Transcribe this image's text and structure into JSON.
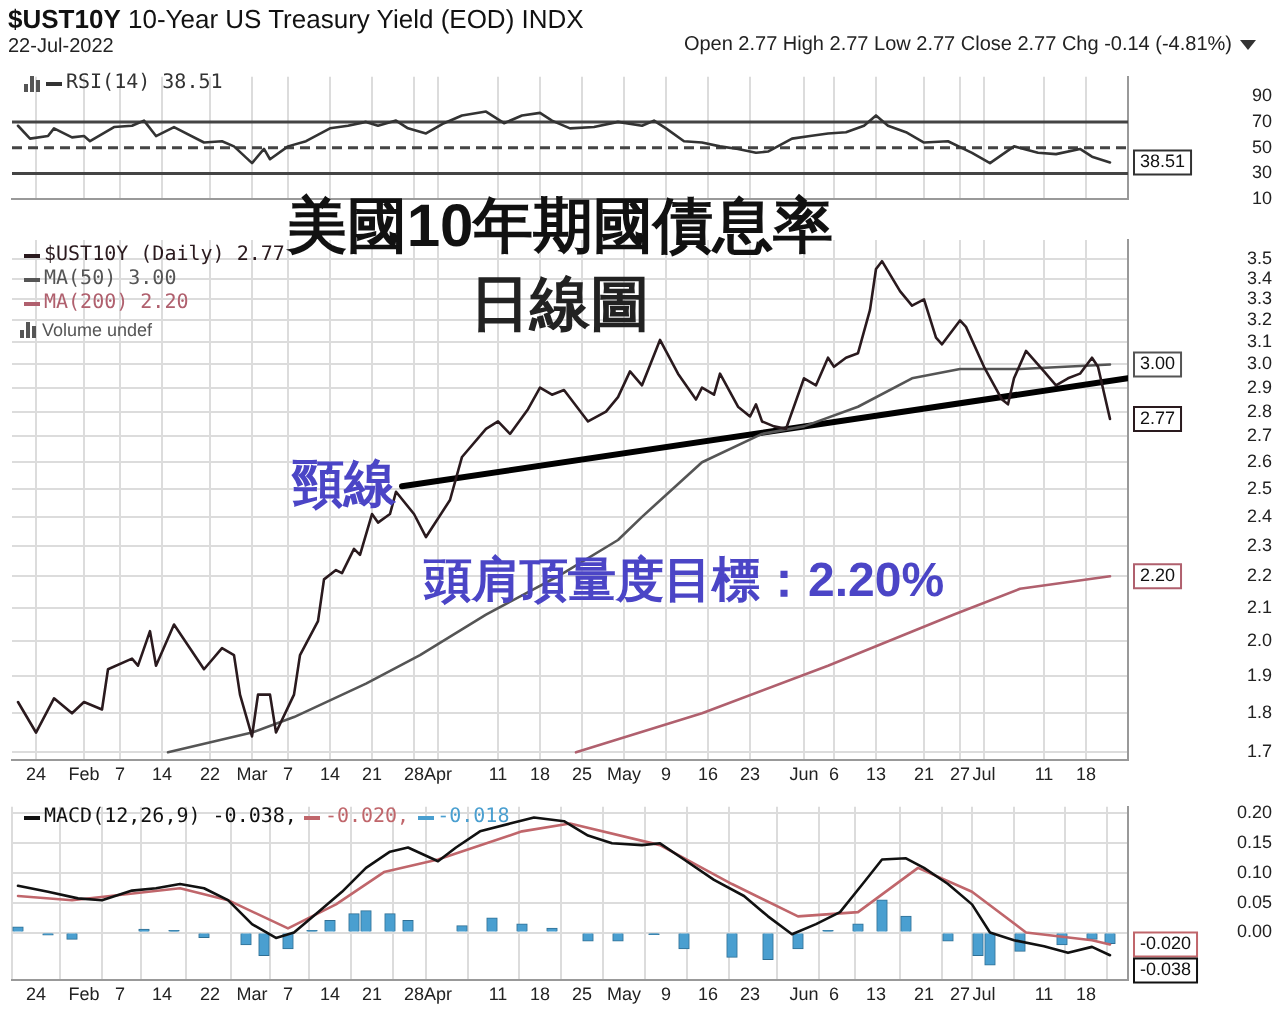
{
  "chart_data": [
    {
      "type": "line",
      "title": "$UST10Y 10-Year US Treasury Yield (EOD) INDX",
      "subtitle": "22-Jul-2022",
      "annotations": [
        "Open 2.77 High 2.77 Low 2.77 Close 2.77 Chg -0.14 (-4.81%)"
      ],
      "grid": "x",
      "legend": "top left",
      "tick_labels": "y",
      "xlim": [
        "--01-20",
        "--07-25"
      ],
      "xticks": [
        {
          "value": "--01-24",
          "label": "24"
        },
        {
          "value": "--02-01",
          "label": "Feb"
        },
        {
          "value": "--02-07",
          "label": "7"
        },
        {
          "value": "--02-14",
          "label": "14"
        },
        {
          "value": "--02-22",
          "label": "22"
        },
        {
          "value": "--03-01",
          "label": "Mar"
        },
        {
          "value": "--03-07",
          "label": "7"
        },
        {
          "value": "--03-14",
          "label": "14"
        },
        {
          "value": "--03-21",
          "label": "21"
        },
        {
          "value": "--03-28",
          "label": "28"
        },
        {
          "value": "--04-01",
          "label": "Apr"
        },
        {
          "value": "--04-11",
          "label": "11"
        },
        {
          "value": "--04-18",
          "label": "18"
        },
        {
          "value": "--04-25",
          "label": "25"
        },
        {
          "value": "--05-02",
          "label": "May"
        },
        {
          "value": "--05-09",
          "label": "9"
        },
        {
          "value": "--05-16",
          "label": "16"
        },
        {
          "value": "--05-23",
          "label": "23"
        },
        {
          "value": "--06-01",
          "label": "Jun"
        },
        {
          "value": "--06-06",
          "label": "6"
        },
        {
          "value": "--06-13",
          "label": "13"
        },
        {
          "value": "--06-21",
          "label": "21"
        },
        {
          "value": "--06-27",
          "label": "27"
        },
        {
          "value": "--07-01",
          "label": "Jul"
        },
        {
          "value": "--07-11",
          "label": "11"
        },
        {
          "value": "--07-18",
          "label": "18"
        }
      ],
      "ylim": [
        10,
        105
      ],
      "yticks": [
        10,
        30,
        50,
        70,
        90
      ],
      "ref_lines": [
        {
          "axis": "y",
          "value": 70,
          "color": "#444444"
        },
        {
          "axis": "y",
          "value": 50,
          "line_style": "dashed",
          "color": "#444444"
        },
        {
          "axis": "y",
          "value": 30,
          "color": "#444444"
        }
      ],
      "series": [
        {
          "name": "RSI(14) 38.51",
          "color": "#333333",
          "x": [
            "--01-21",
            "--01-23",
            "--01-26",
            "--01-27",
            "--01-30",
            "--02-01",
            "--02-02",
            "--02-06",
            "--02-09",
            "--02-11",
            "--02-13",
            "--02-16",
            "--02-21",
            "--02-24",
            "--02-26",
            "--03-01",
            "--03-03",
            "--03-04",
            "--03-07",
            "--03-10",
            "--03-14",
            "--03-17",
            "--03-20",
            "--03-22",
            "--03-25",
            "--03-27",
            "--03-30",
            "--04-02",
            "--04-05",
            "--04-09",
            "--04-12",
            "--04-15",
            "--04-18",
            "--04-20",
            "--04-23",
            "--04-27",
            "--05-01",
            "--05-05",
            "--05-07",
            "--05-09",
            "--05-12",
            "--05-15",
            "--05-18",
            "--05-21",
            "--05-24",
            "--05-26",
            "--05-30",
            "--06-02",
            "--06-05",
            "--06-08",
            "--06-11",
            "--06-13",
            "--06-15",
            "--06-18",
            "--06-21",
            "--06-25",
            "--06-29",
            "--07-02",
            "--07-06",
            "--07-10",
            "--07-13",
            "--07-17",
            "--07-19",
            "--07-22"
          ],
          "values": [
            67,
            57,
            59,
            65,
            58,
            59,
            55,
            66,
            67,
            71,
            59,
            66,
            54,
            55,
            51,
            38,
            49,
            41,
            51,
            55,
            65,
            67,
            70,
            67,
            71,
            65,
            61,
            69,
            75,
            78,
            69,
            75,
            77,
            71,
            65,
            66,
            70,
            67,
            71,
            65,
            55,
            54,
            51,
            49,
            46,
            47,
            57,
            59,
            61,
            62,
            67,
            75,
            67,
            62,
            54,
            55,
            46,
            38,
            51,
            46,
            45,
            49,
            43,
            38.51
          ],
          "value_labels": [
            null,
            null,
            null,
            null,
            null,
            null,
            null,
            null,
            null,
            null,
            null,
            null,
            null,
            null,
            null,
            null,
            null,
            null,
            null,
            null,
            null,
            null,
            null,
            null,
            null,
            null,
            null,
            null,
            null,
            null,
            null,
            null,
            null,
            null,
            null,
            null,
            null,
            null,
            null,
            null,
            null,
            null,
            null,
            null,
            null,
            null,
            null,
            null,
            null,
            null,
            null,
            null,
            null,
            null,
            null,
            null,
            null,
            null,
            null,
            null,
            null,
            null,
            null,
            "38.51"
          ]
        }
      ]
    },
    {
      "type": "line",
      "title": "美國10年期國債息率",
      "subtitle": "日線圖",
      "log": "y",
      "grid": true,
      "legend": "top left",
      "xlim": [
        "--01-20",
        "--07-25"
      ],
      "xticks": [
        {
          "value": "--01-24",
          "label": "24"
        },
        {
          "value": "--02-01",
          "label": "Feb"
        },
        {
          "value": "--02-07",
          "label": "7"
        },
        {
          "value": "--02-14",
          "label": "14"
        },
        {
          "value": "--02-22",
          "label": "22"
        },
        {
          "value": "--03-01",
          "label": "Mar"
        },
        {
          "value": "--03-07",
          "label": "7"
        },
        {
          "value": "--03-14",
          "label": "14"
        },
        {
          "value": "--03-21",
          "label": "21"
        },
        {
          "value": "--03-28",
          "label": "28"
        },
        {
          "value": "--04-01",
          "label": "Apr"
        },
        {
          "value": "--04-11",
          "label": "11"
        },
        {
          "value": "--04-18",
          "label": "18"
        },
        {
          "value": "--04-25",
          "label": "25"
        },
        {
          "value": "--05-02",
          "label": "May"
        },
        {
          "value": "--05-09",
          "label": "9"
        },
        {
          "value": "--05-16",
          "label": "16"
        },
        {
          "value": "--05-23",
          "label": "23"
        },
        {
          "value": "--06-01",
          "label": "Jun"
        },
        {
          "value": "--06-06",
          "label": "6"
        },
        {
          "value": "--06-13",
          "label": "13"
        },
        {
          "value": "--06-21",
          "label": "21"
        },
        {
          "value": "--06-27",
          "label": "27"
        },
        {
          "value": "--07-01",
          "label": "Jul"
        },
        {
          "value": "--07-11",
          "label": "11"
        },
        {
          "value": "--07-18",
          "label": "18"
        }
      ],
      "ylim": [
        1.68,
        3.6
      ],
      "yticks": [
        1.7,
        1.8,
        1.9,
        {
          "value": 2,
          "label": "2.0"
        },
        2.1,
        2.2,
        2.3,
        2.4,
        2.5,
        2.6,
        2.7,
        2.8,
        2.9,
        {
          "value": 3,
          "label": "3.0"
        },
        3.1,
        3.2,
        3.3,
        3.4,
        3.5
      ],
      "annotations": [
        "Volume undef",
        {
          "text": "頸線",
          "x": "--03-26",
          "y": 2.51
        },
        "頭肩頂量度目標：2.20%"
      ],
      "series": [
        {
          "name": "$UST10Y (Daily) 2.77",
          "color": "#2a1a1e",
          "x": [
            "--01-21",
            "--01-24",
            "--01-27",
            "--01-30",
            "--02-01",
            "--02-04",
            "--02-05",
            "--02-09",
            "--02-10",
            "--02-12",
            "--02-13",
            "--02-16",
            "--02-21",
            "--02-24",
            "--02-26",
            "--02-27",
            "--03-01",
            "--03-02",
            "--03-04",
            "--03-05",
            "--03-08",
            "--03-09",
            "--03-12",
            "--03-13",
            "--03-15",
            "--03-16",
            "--03-18",
            "--03-19",
            "--03-21",
            "--03-22",
            "--03-24",
            "--03-25",
            "--03-28",
            "--03-30",
            "--04-03",
            "--04-05",
            "--04-09",
            "--04-11",
            "--04-13",
            "--04-16",
            "--04-18",
            "--04-20",
            "--04-22",
            "--04-26",
            "--04-29",
            "--05-01",
            "--05-03",
            "--05-05",
            "--05-08",
            "--05-11",
            "--05-14",
            "--05-15",
            "--05-17",
            "--05-18",
            "--05-21",
            "--05-23",
            "--05-24",
            "--05-25",
            "--05-27",
            "--05-29",
            "--06-01",
            "--06-03",
            "--06-05",
            "--06-06",
            "--06-08",
            "--06-10",
            "--06-12",
            "--06-13",
            "--06-14",
            "--06-17",
            "--06-19",
            "--06-21",
            "--06-23",
            "--06-24",
            "--06-27",
            "--06-28",
            "--07-01",
            "--07-04",
            "--07-05",
            "--07-06",
            "--07-08",
            "--07-11",
            "--07-13",
            "--07-15",
            "--07-17",
            "--07-19",
            "--07-20",
            "--07-22"
          ],
          "values": [
            1.83,
            1.75,
            1.84,
            1.8,
            1.83,
            1.81,
            1.92,
            1.95,
            1.93,
            2.03,
            1.93,
            2.05,
            1.92,
            1.98,
            1.96,
            1.85,
            1.74,
            1.85,
            1.85,
            1.75,
            1.85,
            1.96,
            2.06,
            2.19,
            2.22,
            2.21,
            2.29,
            2.27,
            2.41,
            2.38,
            2.41,
            2.49,
            2.41,
            2.33,
            2.46,
            2.62,
            2.73,
            2.76,
            2.71,
            2.81,
            2.9,
            2.87,
            2.89,
            2.76,
            2.8,
            2.86,
            2.97,
            2.91,
            3.11,
            2.96,
            2.85,
            2.9,
            2.87,
            2.96,
            2.82,
            2.78,
            2.83,
            2.76,
            2.74,
            2.73,
            2.94,
            2.91,
            3.03,
            2.99,
            3.03,
            3.05,
            3.25,
            3.45,
            3.49,
            3.34,
            3.27,
            3.3,
            3.12,
            3.09,
            3.2,
            3.17,
            2.99,
            2.85,
            2.83,
            2.94,
            3.06,
            2.97,
            2.91,
            2.94,
            2.96,
            3.03,
            2.99,
            2.77
          ],
          "value_labels": [
            null,
            null,
            null,
            null,
            null,
            null,
            null,
            null,
            null,
            null,
            null,
            null,
            null,
            null,
            null,
            null,
            null,
            null,
            null,
            null,
            null,
            null,
            null,
            null,
            null,
            null,
            null,
            null,
            null,
            null,
            null,
            null,
            null,
            null,
            null,
            null,
            null,
            null,
            null,
            null,
            null,
            null,
            null,
            null,
            null,
            null,
            null,
            null,
            null,
            null,
            null,
            null,
            null,
            null,
            null,
            null,
            null,
            null,
            null,
            null,
            null,
            null,
            null,
            null,
            null,
            null,
            null,
            null,
            null,
            null,
            null,
            null,
            null,
            null,
            null,
            null,
            null,
            null,
            null,
            null,
            null,
            null,
            null,
            null,
            null,
            null,
            null,
            "2.77"
          ]
        },
        {
          "name": "MA(50) 3.00",
          "color": "#555555",
          "x": [
            "--02-15",
            "--03-01",
            "--03-08",
            "--03-20",
            "--03-29",
            "--04-09",
            "--04-21",
            "--05-01",
            "--05-05",
            "--05-15",
            "--05-25",
            "--06-01",
            "--06-10",
            "--06-19",
            "--06-27",
            "--07-07",
            "--07-22"
          ],
          "values": [
            1.7,
            1.75,
            1.79,
            1.88,
            1.96,
            2.08,
            2.2,
            2.32,
            2.4,
            2.6,
            2.71,
            2.74,
            2.82,
            2.94,
            2.98,
            2.98,
            3.0
          ],
          "value_labels": [
            null,
            null,
            null,
            null,
            null,
            null,
            null,
            null,
            null,
            null,
            null,
            null,
            null,
            null,
            null,
            null,
            "3.00"
          ]
        },
        {
          "name": "MA(200) 2.20",
          "color": "#b0606e",
          "x": [
            "--04-24",
            "--05-15",
            "--06-05",
            "--06-26",
            "--07-07",
            "--07-22"
          ],
          "values": [
            1.7,
            1.8,
            1.93,
            2.08,
            2.16,
            2.2
          ],
          "value_labels": [
            null,
            null,
            null,
            null,
            null,
            "2.20"
          ]
        },
        {
          "type": "line",
          "color": "#000000",
          "x": [
            "--03-26",
            "--07-25"
          ],
          "values": [
            2.51,
            2.94
          ]
        }
      ]
    },
    {
      "type": "line",
      "grid": true,
      "legend": "top left",
      "xlim": [
        "--01-20",
        "--07-25"
      ],
      "xticks": [
        {
          "value": "--01-24",
          "label": "24"
        },
        {
          "value": "--02-01",
          "label": "Feb"
        },
        {
          "value": "--02-07",
          "label": "7"
        },
        {
          "value": "--02-14",
          "label": "14"
        },
        {
          "value": "--02-22",
          "label": "22"
        },
        {
          "value": "--03-01",
          "label": "Mar"
        },
        {
          "value": "--03-07",
          "label": "7"
        },
        {
          "value": "--03-14",
          "label": "14"
        },
        {
          "value": "--03-21",
          "label": "21"
        },
        {
          "value": "--03-28",
          "label": "28"
        },
        {
          "value": "--04-01",
          "label": "Apr"
        },
        {
          "value": "--04-11",
          "label": "11"
        },
        {
          "value": "--04-18",
          "label": "18"
        },
        {
          "value": "--04-25",
          "label": "25"
        },
        {
          "value": "--05-02",
          "label": "May"
        },
        {
          "value": "--05-09",
          "label": "9"
        },
        {
          "value": "--05-16",
          "label": "16"
        },
        {
          "value": "--05-23",
          "label": "23"
        },
        {
          "value": "--06-01",
          "label": "Jun"
        },
        {
          "value": "--06-06",
          "label": "6"
        },
        {
          "value": "--06-13",
          "label": "13"
        },
        {
          "value": "--06-21",
          "label": "21"
        },
        {
          "value": "--06-27",
          "label": "27"
        },
        {
          "value": "--07-01",
          "label": "Jul"
        },
        {
          "value": "--07-11",
          "label": "11"
        },
        {
          "value": "--07-18",
          "label": "18"
        }
      ],
      "ylim": [
        -0.08,
        0.21
      ],
      "yticks": [
        {
          "value": 0.2,
          "label": "0.20"
        },
        {
          "value": 0.15,
          "label": "0.15"
        },
        {
          "value": 0.1,
          "label": "0.10"
        },
        {
          "value": 0.05,
          "label": "0.05"
        },
        {
          "value": 0,
          "label": "0.00"
        }
      ],
      "series": [
        {
          "name": "MACD(12,26,9) -0.038,",
          "color": "#111111",
          "x": [
            "--01-21",
            "--01-26",
            "--01-31",
            "--02-04",
            "--02-09",
            "--02-13",
            "--02-17",
            "--02-21",
            "--02-25",
            "--03-01",
            "--03-05",
            "--03-08",
            "--03-12",
            "--03-16",
            "--03-20",
            "--03-24",
            "--03-27",
            "--04-01",
            "--04-04",
            "--04-08",
            "--04-13",
            "--04-17",
            "--04-22",
            "--04-26",
            "--04-30",
            "--05-05",
            "--05-08",
            "--05-12",
            "--05-17",
            "--05-22",
            "--05-26",
            "--05-30",
            "--06-03",
            "--06-07",
            "--06-11",
            "--06-14",
            "--06-18",
            "--06-21",
            "--06-25",
            "--06-29",
            "--07-02",
            "--07-06",
            "--07-11",
            "--07-15",
            "--07-19",
            "--07-22"
          ],
          "values": [
            0.078,
            0.068,
            0.057,
            0.054,
            0.07,
            0.074,
            0.081,
            0.074,
            0.054,
            0.014,
            -0.009,
            0.0,
            0.034,
            0.068,
            0.108,
            0.135,
            0.142,
            0.119,
            0.142,
            0.169,
            0.182,
            0.192,
            0.186,
            0.162,
            0.149,
            0.146,
            0.149,
            0.122,
            0.088,
            0.061,
            0.027,
            -0.003,
            0.014,
            0.034,
            0.084,
            0.122,
            0.124,
            0.108,
            0.081,
            0.047,
            0.0,
            -0.013,
            -0.023,
            -0.034,
            -0.024,
            -0.038
          ],
          "value_labels": [
            null,
            null,
            null,
            null,
            null,
            null,
            null,
            null,
            null,
            null,
            null,
            null,
            null,
            null,
            null,
            null,
            null,
            null,
            null,
            null,
            null,
            null,
            null,
            null,
            null,
            null,
            null,
            null,
            null,
            null,
            null,
            null,
            null,
            null,
            null,
            null,
            null,
            null,
            null,
            null,
            null,
            null,
            null,
            null,
            null,
            "-0.038"
          ]
        },
        {
          "name": "-0.020,",
          "color": "#c0666b",
          "x": [
            "--01-21",
            "--01-30",
            "--02-17",
            "--02-25",
            "--03-07",
            "--03-15",
            "--03-23",
            "--04-01",
            "--04-15",
            "--04-23",
            "--05-08",
            "--05-20",
            "--05-31",
            "--06-10",
            "--06-20",
            "--06-29",
            "--07-08",
            "--07-19",
            "--07-22"
          ],
          "values": [
            0.061,
            0.054,
            0.074,
            0.054,
            0.007,
            0.047,
            0.101,
            0.122,
            0.169,
            0.182,
            0.146,
            0.081,
            0.027,
            0.034,
            0.108,
            0.068,
            0.0,
            -0.013,
            -0.02
          ],
          "value_labels": [
            null,
            null,
            null,
            null,
            null,
            null,
            null,
            null,
            null,
            null,
            null,
            null,
            null,
            null,
            null,
            null,
            null,
            null,
            "-0.020"
          ]
        },
        {
          "name": "-0.018",
          "type": "bar",
          "color": "#4a9fd0",
          "x": [
            "--01-21",
            "--01-26",
            "--01-30",
            "--02-06",
            "--02-11",
            "--02-16",
            "--02-21",
            "--02-28",
            "--03-03",
            "--03-07",
            "--03-11",
            "--03-14",
            "--03-18",
            "--03-20",
            "--03-24",
            "--03-27",
            "--03-31",
            "--04-05",
            "--04-10",
            "--04-15",
            "--04-20",
            "--04-26",
            "--05-01",
            "--05-07",
            "--05-12",
            "--05-20",
            "--05-26",
            "--05-31",
            "--06-05",
            "--06-10",
            "--06-14",
            "--06-18",
            "--06-21",
            "--06-25",
            "--06-30",
            "--07-02",
            "--07-07",
            "--07-14",
            "--07-19",
            "--07-22"
          ],
          "values": [
            0.009,
            -0.004,
            -0.011,
            0.0,
            0.005,
            0.003,
            -0.008,
            -0.02,
            -0.038,
            -0.027,
            0.003,
            0.02,
            0.031,
            0.036,
            0.031,
            0.02,
            0.0,
            0.011,
            0.024,
            0.014,
            0.007,
            -0.014,
            -0.014,
            -0.003,
            -0.027,
            -0.041,
            -0.045,
            -0.027,
            0.003,
            0.014,
            0.054,
            0.027,
            0.0,
            -0.014,
            -0.038,
            -0.054,
            -0.031,
            -0.02,
            -0.011,
            -0.018
          ]
        }
      ]
    }
  ]
}
